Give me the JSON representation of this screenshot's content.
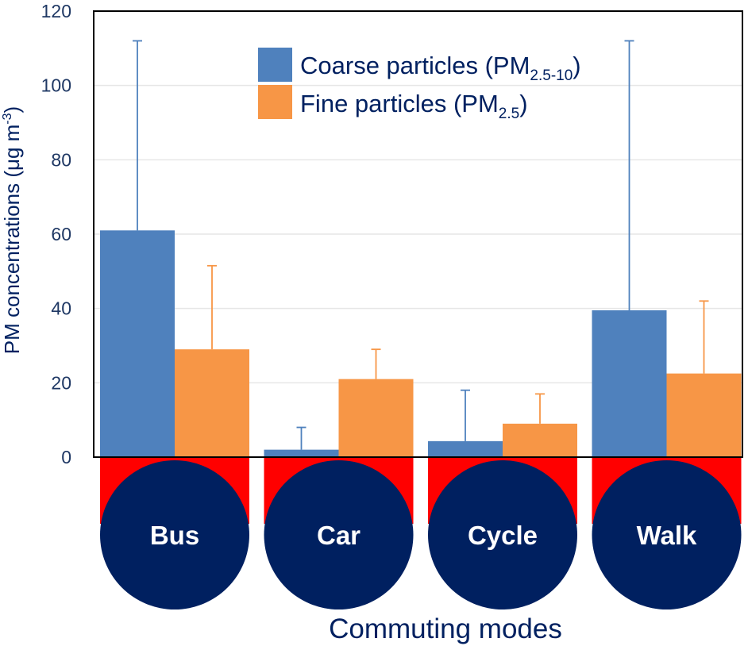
{
  "chart_data": {
    "type": "bar",
    "categories": [
      "Bus",
      "Car",
      "Cycle",
      "Walk"
    ],
    "series": [
      {
        "name": "Coarse particles (PM2.5-10)",
        "name_main": "Coarse particles (PM",
        "name_sub": "2.5-10",
        "name_tail": ")",
        "color": "#4f81bd",
        "values": [
          61,
          2,
          4.3,
          39.5
        ],
        "error_upper": [
          112,
          8,
          18,
          112
        ]
      },
      {
        "name": "Fine particles (PM2.5)",
        "name_main": "Fine particles (PM",
        "name_sub": "2.5",
        "name_tail": ")",
        "color": "#f79646",
        "values": [
          29,
          21,
          9,
          22.5
        ],
        "error_upper": [
          51.5,
          29,
          17,
          42
        ]
      }
    ],
    "ylabel_main": "PM concentrations (μg m",
    "ylabel_sup": "-3",
    "ylabel_tail": ")",
    "xlabel": "Commuting modes",
    "ylim": [
      0,
      120
    ],
    "yticks": [
      0,
      20,
      40,
      60,
      80,
      100,
      120
    ],
    "grid": true,
    "legend_position": "top-center",
    "colors": {
      "axis": "#000000",
      "grid": "#e6e6e6",
      "text": "#002060",
      "category_circle": "#002060",
      "category_band": "#ff0000"
    }
  }
}
